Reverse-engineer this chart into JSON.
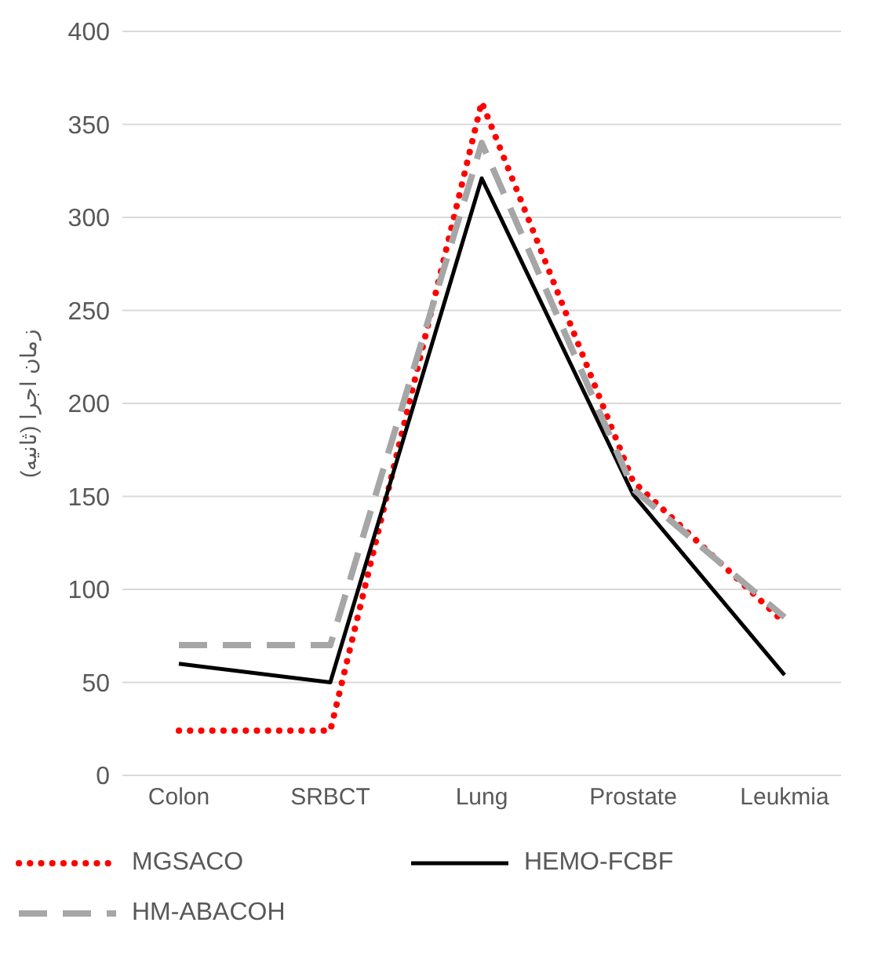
{
  "chart_data": {
    "type": "line",
    "ylabel": "زمان اجرا (ثانیه)",
    "categories": [
      "Colon",
      "SRBCT",
      "Lung",
      "Prostate",
      "Leukmia"
    ],
    "series": [
      {
        "name": "MGSACO",
        "color": "#ff0000",
        "line_style": "dotted",
        "values": [
          24,
          24,
          362,
          158,
          82
        ]
      },
      {
        "name": "HEMO-FCBF",
        "color": "#000000",
        "line_style": "solid",
        "values": [
          60,
          50,
          321,
          151,
          54
        ]
      },
      {
        "name": "HM-ABACOH",
        "color": "#a6a6a6",
        "line_style": "dashed",
        "values": [
          70,
          70,
          340,
          154,
          85
        ]
      }
    ],
    "ylim": [
      0,
      400
    ],
    "yticks": [
      0,
      50,
      100,
      150,
      200,
      250,
      300,
      350,
      400
    ],
    "grid": "y",
    "legend": "bottom",
    "marker": "none"
  }
}
